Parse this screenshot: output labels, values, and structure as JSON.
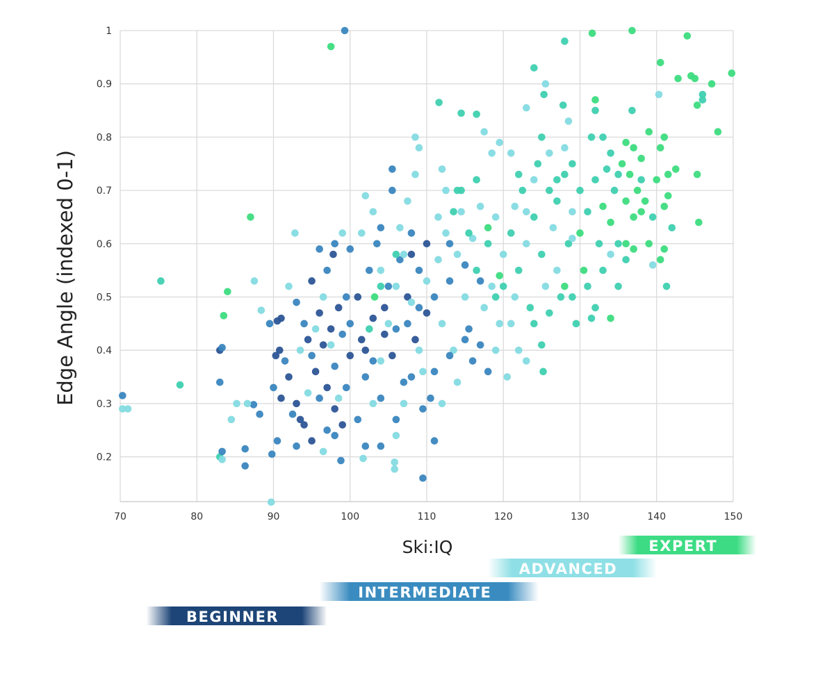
{
  "chart_data": {
    "type": "scatter",
    "title": "",
    "xlabel": "Ski:IQ",
    "ylabel": "Edge Angle (indexed 0-1)",
    "xlim": [
      70,
      150
    ],
    "ylim": [
      0.116,
      1.0
    ],
    "xticks": [
      70,
      80,
      90,
      100,
      110,
      120,
      130,
      140,
      150
    ],
    "xtick_labels": [
      "70",
      "80",
      "90",
      "100",
      "110",
      "120",
      "130",
      "140",
      "150"
    ],
    "yticks": [
      0.2,
      0.3,
      0.4,
      0.5,
      0.6,
      0.7,
      0.8,
      0.9,
      1.0
    ],
    "ytick_labels": [
      "0.2",
      "0.3",
      "0.4",
      "0.5",
      "0.6",
      "0.7",
      "0.8",
      "0.9",
      "1"
    ],
    "grid": true,
    "groups": [
      {
        "name": "group-0",
        "color": "#2d5596"
      },
      {
        "name": "group-1",
        "color": "#3a86bf"
      },
      {
        "name": "group-2",
        "color": "#84dbe2"
      },
      {
        "name": "group-3",
        "color": "#3fd0b0"
      },
      {
        "name": "group-4",
        "color": "#3ddc80"
      }
    ],
    "bands": [
      {
        "label": "BEGINNER",
        "from": 73.4,
        "to": 97.0,
        "color": "#1d4577"
      },
      {
        "label": "INTERMEDIATE",
        "from": 96.0,
        "to": 124.6,
        "color": "#3a8cc0"
      },
      {
        "label": "ADVANCED",
        "from": 118.0,
        "to": 140.0,
        "color": "#8fe0e6"
      },
      {
        "label": "EXPERT",
        "from": 135.0,
        "to": 153.0,
        "color": "#3ddc84"
      }
    ],
    "points": [
      [
        99.3,
        1.0,
        1
      ],
      [
        97.5,
        0.97,
        4
      ],
      [
        70.3,
        0.315,
        1
      ],
      [
        70.3,
        0.29,
        2
      ],
      [
        71,
        0.29,
        2
      ],
      [
        75.3,
        0.53,
        3
      ],
      [
        77.8,
        0.335,
        3
      ],
      [
        83.5,
        0.465,
        4
      ],
      [
        84,
        0.51,
        4
      ],
      [
        87,
        0.65,
        4
      ],
      [
        83,
        0.2,
        3
      ],
      [
        83.3,
        0.195,
        2
      ],
      [
        83.3,
        0.21,
        1
      ],
      [
        86.3,
        0.183,
        1
      ],
      [
        86.3,
        0.215,
        1
      ],
      [
        89.7,
        0.115,
        2
      ],
      [
        89.8,
        0.205,
        1
      ],
      [
        98.8,
        0.193,
        1
      ],
      [
        101.7,
        0.197,
        2
      ],
      [
        109.5,
        0.16,
        1
      ],
      [
        105.8,
        0.177,
        2
      ],
      [
        105.8,
        0.19,
        2
      ],
      [
        83,
        0.4,
        0
      ],
      [
        83.3,
        0.405,
        1
      ],
      [
        83,
        0.34,
        1
      ],
      [
        88.2,
        0.28,
        1
      ],
      [
        87.4,
        0.298,
        1
      ],
      [
        86.6,
        0.3,
        2
      ],
      [
        85.2,
        0.3,
        2
      ],
      [
        84.5,
        0.27,
        2
      ],
      [
        92.8,
        0.62,
        2
      ],
      [
        88.4,
        0.475,
        2
      ],
      [
        87.5,
        0.53,
        2
      ],
      [
        89.5,
        0.45,
        1
      ],
      [
        90.5,
        0.455,
        0
      ],
      [
        91,
        0.46,
        0
      ],
      [
        90.8,
        0.4,
        0
      ],
      [
        90.3,
        0.39,
        0
      ],
      [
        131.6,
        0.995,
        4
      ],
      [
        136.8,
        1.0,
        4
      ],
      [
        144,
        0.99,
        4
      ],
      [
        149.8,
        0.92,
        4
      ],
      [
        147.2,
        0.9,
        4
      ],
      [
        145,
        0.91,
        4
      ],
      [
        144.5,
        0.915,
        4
      ],
      [
        142.8,
        0.91,
        4
      ],
      [
        140.5,
        0.94,
        4
      ],
      [
        148,
        0.81,
        4
      ],
      [
        145.3,
        0.86,
        4
      ],
      [
        146,
        0.87,
        3
      ],
      [
        146,
        0.88,
        3
      ],
      [
        140.3,
        0.88,
        2
      ],
      [
        124,
        0.93,
        3
      ],
      [
        128,
        0.98,
        3
      ],
      [
        125.5,
        0.9,
        2
      ],
      [
        125.3,
        0.88,
        3
      ],
      [
        123,
        0.855,
        2
      ],
      [
        111.6,
        0.865,
        3
      ],
      [
        114.5,
        0.845,
        3
      ],
      [
        116.5,
        0.843,
        3
      ],
      [
        145.5,
        0.64,
        4
      ],
      [
        145.3,
        0.73,
        4
      ],
      [
        141.3,
        0.52,
        3
      ],
      [
        134,
        0.46,
        4
      ],
      [
        131.5,
        0.46,
        3
      ],
      [
        92,
        0.35,
        0
      ],
      [
        93,
        0.3,
        0
      ],
      [
        93.5,
        0.27,
        0
      ],
      [
        94,
        0.26,
        0
      ],
      [
        95,
        0.23,
        0
      ],
      [
        94.5,
        0.42,
        0
      ],
      [
        96,
        0.47,
        0
      ],
      [
        97,
        0.33,
        0
      ],
      [
        98,
        0.29,
        0
      ],
      [
        99,
        0.26,
        0
      ],
      [
        96.5,
        0.41,
        0
      ],
      [
        95.5,
        0.36,
        0
      ],
      [
        97.5,
        0.44,
        0
      ],
      [
        98.5,
        0.48,
        0
      ],
      [
        93,
        0.49,
        1
      ],
      [
        94,
        0.45,
        1
      ],
      [
        95,
        0.39,
        1
      ],
      [
        96,
        0.31,
        1
      ],
      [
        97,
        0.25,
        1
      ],
      [
        98,
        0.37,
        1
      ],
      [
        99,
        0.43,
        1
      ],
      [
        99.5,
        0.5,
        1
      ],
      [
        92.5,
        0.28,
        1
      ],
      [
        91.5,
        0.38,
        1
      ],
      [
        94.5,
        0.32,
        2
      ],
      [
        95.5,
        0.44,
        2
      ],
      [
        96.5,
        0.5,
        2
      ],
      [
        97.5,
        0.41,
        2
      ],
      [
        98.5,
        0.31,
        2
      ],
      [
        93.5,
        0.4,
        2
      ],
      [
        92,
        0.52,
        2
      ],
      [
        97,
        0.55,
        1
      ],
      [
        98,
        0.6,
        1
      ],
      [
        96,
        0.59,
        1
      ],
      [
        99,
        0.62,
        2
      ],
      [
        97.8,
        0.58,
        0
      ],
      [
        100,
        0.59,
        1
      ],
      [
        95,
        0.53,
        0
      ],
      [
        91,
        0.31,
        0
      ],
      [
        90,
        0.33,
        1
      ],
      [
        90.5,
        0.23,
        1
      ],
      [
        93,
        0.22,
        1
      ],
      [
        96.5,
        0.21,
        2
      ],
      [
        98,
        0.24,
        1
      ],
      [
        99.5,
        0.33,
        1
      ],
      [
        100,
        0.39,
        0
      ],
      [
        100,
        0.45,
        1
      ],
      [
        101,
        0.5,
        0
      ],
      [
        101.5,
        0.42,
        0
      ],
      [
        102,
        0.35,
        1
      ],
      [
        102.5,
        0.55,
        1
      ],
      [
        103,
        0.46,
        0
      ],
      [
        103.5,
        0.6,
        1
      ],
      [
        104,
        0.31,
        1
      ],
      [
        104.5,
        0.48,
        0
      ],
      [
        105,
        0.52,
        1
      ],
      [
        105.5,
        0.39,
        0
      ],
      [
        106,
        0.44,
        1
      ],
      [
        106.5,
        0.57,
        1
      ],
      [
        107,
        0.34,
        1
      ],
      [
        107.5,
        0.5,
        0
      ],
      [
        108,
        0.62,
        1
      ],
      [
        108.5,
        0.42,
        0
      ],
      [
        109,
        0.55,
        1
      ],
      [
        109.5,
        0.29,
        1
      ],
      [
        110,
        0.47,
        0
      ],
      [
        101,
        0.27,
        1
      ],
      [
        102,
        0.22,
        1
      ],
      [
        103,
        0.3,
        2
      ],
      [
        104,
        0.38,
        2
      ],
      [
        105,
        0.45,
        2
      ],
      [
        106,
        0.52,
        2
      ],
      [
        107,
        0.58,
        2
      ],
      [
        108,
        0.49,
        2
      ],
      [
        109,
        0.4,
        2
      ],
      [
        110,
        0.53,
        2
      ],
      [
        101.5,
        0.62,
        2
      ],
      [
        103,
        0.66,
        2
      ],
      [
        104,
        0.55,
        2
      ],
      [
        105.5,
        0.7,
        1
      ],
      [
        105.5,
        0.74,
        1
      ],
      [
        106.5,
        0.63,
        2
      ],
      [
        107.5,
        0.68,
        2
      ],
      [
        108.5,
        0.8,
        2
      ],
      [
        109,
        0.78,
        2
      ],
      [
        108.5,
        0.73,
        2
      ],
      [
        102,
        0.69,
        2
      ],
      [
        104,
        0.63,
        1
      ],
      [
        106,
        0.27,
        1
      ],
      [
        107,
        0.3,
        2
      ],
      [
        108,
        0.35,
        1
      ],
      [
        109.5,
        0.36,
        2
      ],
      [
        110.5,
        0.31,
        1
      ],
      [
        111,
        0.23,
        1
      ],
      [
        104,
        0.22,
        1
      ],
      [
        106,
        0.24,
        2
      ],
      [
        102.5,
        0.44,
        3
      ],
      [
        104,
        0.52,
        3
      ],
      [
        103.2,
        0.5,
        4
      ],
      [
        106,
        0.58,
        3
      ],
      [
        107.5,
        0.45,
        1
      ],
      [
        109,
        0.48,
        1
      ],
      [
        110,
        0.6,
        0
      ],
      [
        108,
        0.58,
        0
      ],
      [
        104.5,
        0.43,
        0
      ],
      [
        102,
        0.4,
        0
      ],
      [
        103,
        0.38,
        1
      ],
      [
        111,
        0.5,
        1
      ],
      [
        111.5,
        0.57,
        2
      ],
      [
        112,
        0.45,
        2
      ],
      [
        112.5,
        0.62,
        2
      ],
      [
        113,
        0.53,
        1
      ],
      [
        113.5,
        0.4,
        2
      ],
      [
        114,
        0.58,
        2
      ],
      [
        114.5,
        0.66,
        2
      ],
      [
        115,
        0.5,
        2
      ],
      [
        115.5,
        0.44,
        1
      ],
      [
        116,
        0.61,
        2
      ],
      [
        116.5,
        0.55,
        3
      ],
      [
        117,
        0.67,
        2
      ],
      [
        117.5,
        0.48,
        2
      ],
      [
        118,
        0.6,
        3
      ],
      [
        118.5,
        0.52,
        2
      ],
      [
        119,
        0.65,
        2
      ],
      [
        119.5,
        0.45,
        2
      ],
      [
        120,
        0.58,
        2
      ],
      [
        111,
        0.36,
        1
      ],
      [
        112,
        0.3,
        2
      ],
      [
        113,
        0.39,
        1
      ],
      [
        114,
        0.34,
        2
      ],
      [
        115,
        0.42,
        1
      ],
      [
        116,
        0.38,
        1
      ],
      [
        117,
        0.41,
        1
      ],
      [
        118,
        0.36,
        1
      ],
      [
        119,
        0.4,
        2
      ],
      [
        111.5,
        0.65,
        2
      ],
      [
        112.5,
        0.7,
        2
      ],
      [
        113.5,
        0.66,
        3
      ],
      [
        114.5,
        0.7,
        3
      ],
      [
        115.5,
        0.62,
        3
      ],
      [
        116.5,
        0.72,
        3
      ],
      [
        117.5,
        0.81,
        2
      ],
      [
        118.5,
        0.77,
        2
      ],
      [
        119.5,
        0.79,
        2
      ],
      [
        113,
        0.6,
        1
      ],
      [
        115,
        0.56,
        1
      ],
      [
        117,
        0.53,
        1
      ],
      [
        119,
        0.5,
        3
      ],
      [
        120,
        0.52,
        3
      ],
      [
        118,
        0.63,
        4
      ],
      [
        119.5,
        0.54,
        4
      ],
      [
        112,
        0.74,
        2
      ],
      [
        114,
        0.7,
        3
      ],
      [
        121,
        0.62,
        3
      ],
      [
        121.5,
        0.67,
        2
      ],
      [
        122,
        0.55,
        3
      ],
      [
        122.5,
        0.7,
        3
      ],
      [
        123,
        0.6,
        2
      ],
      [
        123.5,
        0.48,
        3
      ],
      [
        124,
        0.65,
        3
      ],
      [
        124.5,
        0.75,
        3
      ],
      [
        125,
        0.58,
        3
      ],
      [
        125.5,
        0.52,
        2
      ],
      [
        126,
        0.7,
        3
      ],
      [
        126.5,
        0.63,
        2
      ],
      [
        127,
        0.68,
        3
      ],
      [
        127.5,
        0.5,
        3
      ],
      [
        128,
        0.73,
        3
      ],
      [
        128.5,
        0.6,
        3
      ],
      [
        129,
        0.66,
        2
      ],
      [
        129.5,
        0.45,
        3
      ],
      [
        130,
        0.7,
        3
      ],
      [
        121,
        0.45,
        2
      ],
      [
        122,
        0.4,
        2
      ],
      [
        123,
        0.38,
        2
      ],
      [
        124,
        0.45,
        3
      ],
      [
        125,
        0.41,
        3
      ],
      [
        126,
        0.47,
        3
      ],
      [
        127,
        0.55,
        2
      ],
      [
        128,
        0.52,
        4
      ],
      [
        129,
        0.5,
        3
      ],
      [
        121,
        0.77,
        2
      ],
      [
        122,
        0.73,
        3
      ],
      [
        123,
        0.66,
        2
      ],
      [
        124,
        0.72,
        2
      ],
      [
        125,
        0.8,
        3
      ],
      [
        126,
        0.77,
        2
      ],
      [
        127,
        0.72,
        3
      ],
      [
        128,
        0.78,
        2
      ],
      [
        129,
        0.75,
        3
      ],
      [
        128.5,
        0.83,
        2
      ],
      [
        127.8,
        0.86,
        3
      ],
      [
        125.2,
        0.36,
        3
      ],
      [
        130,
        0.62,
        4
      ],
      [
        129,
        0.61,
        2
      ],
      [
        130.5,
        0.55,
        4
      ],
      [
        121.5,
        0.5,
        2
      ],
      [
        120.5,
        0.35,
        2
      ],
      [
        131,
        0.66,
        3
      ],
      [
        132,
        0.72,
        3
      ],
      [
        132.5,
        0.6,
        3
      ],
      [
        133,
        0.67,
        4
      ],
      [
        133.5,
        0.74,
        3
      ],
      [
        134,
        0.64,
        4
      ],
      [
        134.5,
        0.7,
        3
      ],
      [
        135,
        0.6,
        3
      ],
      [
        135.5,
        0.75,
        4
      ],
      [
        136,
        0.68,
        4
      ],
      [
        136.5,
        0.73,
        4
      ],
      [
        137,
        0.78,
        4
      ],
      [
        137.5,
        0.7,
        4
      ],
      [
        138,
        0.76,
        4
      ],
      [
        138.5,
        0.68,
        4
      ],
      [
        139,
        0.81,
        4
      ],
      [
        139.5,
        0.65,
        3
      ],
      [
        140,
        0.72,
        4
      ],
      [
        131,
        0.52,
        3
      ],
      [
        132,
        0.48,
        3
      ],
      [
        133,
        0.55,
        3
      ],
      [
        134,
        0.58,
        2
      ],
      [
        135,
        0.52,
        3
      ],
      [
        136,
        0.57,
        3
      ],
      [
        137,
        0.59,
        4
      ],
      [
        131.5,
        0.8,
        3
      ],
      [
        132,
        0.85,
        3
      ],
      [
        133,
        0.8,
        3
      ],
      [
        135,
        0.73,
        3
      ],
      [
        136,
        0.6,
        4
      ],
      [
        137,
        0.65,
        4
      ],
      [
        138,
        0.72,
        3
      ],
      [
        139.5,
        0.56,
        2
      ],
      [
        140.5,
        0.57,
        4
      ],
      [
        141,
        0.59,
        4
      ],
      [
        141,
        0.67,
        4
      ],
      [
        141.5,
        0.69,
        4
      ],
      [
        142,
        0.63,
        3
      ],
      [
        141.5,
        0.73,
        4
      ],
      [
        142.5,
        0.74,
        4
      ],
      [
        141,
        0.8,
        4
      ],
      [
        140.5,
        0.78,
        4
      ],
      [
        139,
        0.6,
        4
      ],
      [
        132,
        0.87,
        4
      ],
      [
        136.8,
        0.85,
        3
      ],
      [
        134,
        0.77,
        3
      ],
      [
        136,
        0.79,
        4
      ],
      [
        138,
        0.66,
        4
      ]
    ]
  }
}
